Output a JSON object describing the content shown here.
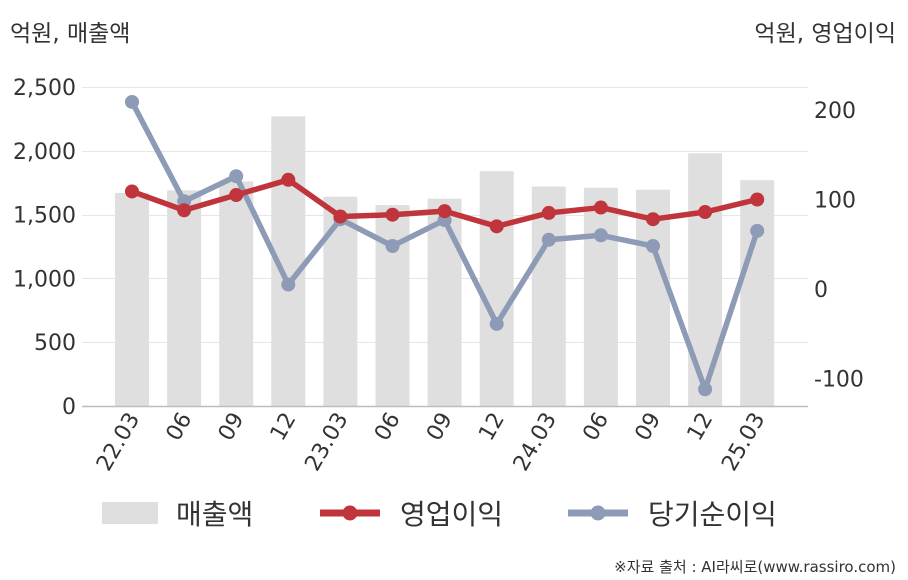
{
  "units": {
    "left": "억원, 매출액",
    "right": "억원, 영업이익"
  },
  "source": "※자료 출처 : AI라씨로(www.rassiro.com)",
  "colors": {
    "sales": "#dfdfdf",
    "operating_profit": "#c0353b",
    "net_income": "#8e9bb6",
    "grid": "#e6e6e6",
    "axis": "#bdbdbd",
    "text": "#333333"
  },
  "chart_data": {
    "type": "bar+line",
    "categories": [
      "22.03",
      "06",
      "09",
      "12",
      "23.03",
      "06",
      "09",
      "12",
      "24.03",
      "06",
      "09",
      "12",
      "25.03"
    ],
    "left_axis": {
      "min": 0,
      "max": 2500,
      "ticks": [
        0,
        500,
        1000,
        1500,
        2000,
        2500
      ],
      "tick_labels": [
        "0",
        "500",
        "1,000",
        "1,500",
        "2,000",
        "2,500"
      ]
    },
    "right_axis": {
      "min": -130,
      "max": 230,
      "ticks": [
        -100,
        0,
        100,
        200
      ],
      "tick_labels": [
        "-100",
        "0",
        "100",
        "200"
      ]
    },
    "grid": true,
    "legend_position": "bottom",
    "series": [
      {
        "name": "매출액",
        "type": "bar",
        "axis": "left",
        "values": [
          1670,
          1690,
          1760,
          2270,
          1640,
          1575,
          1625,
          1840,
          1720,
          1710,
          1695,
          1980,
          1770
        ]
      },
      {
        "name": "영업이익",
        "type": "line",
        "axis": "right",
        "values": [
          109,
          88,
          105,
          122,
          81,
          83,
          87,
          70,
          85,
          91,
          78,
          86,
          100
        ]
      },
      {
        "name": "당기순이익",
        "type": "line",
        "axis": "right",
        "values": [
          209,
          98,
          126,
          5,
          78,
          48,
          77,
          -39,
          55,
          60,
          48,
          -112,
          65
        ]
      }
    ]
  }
}
